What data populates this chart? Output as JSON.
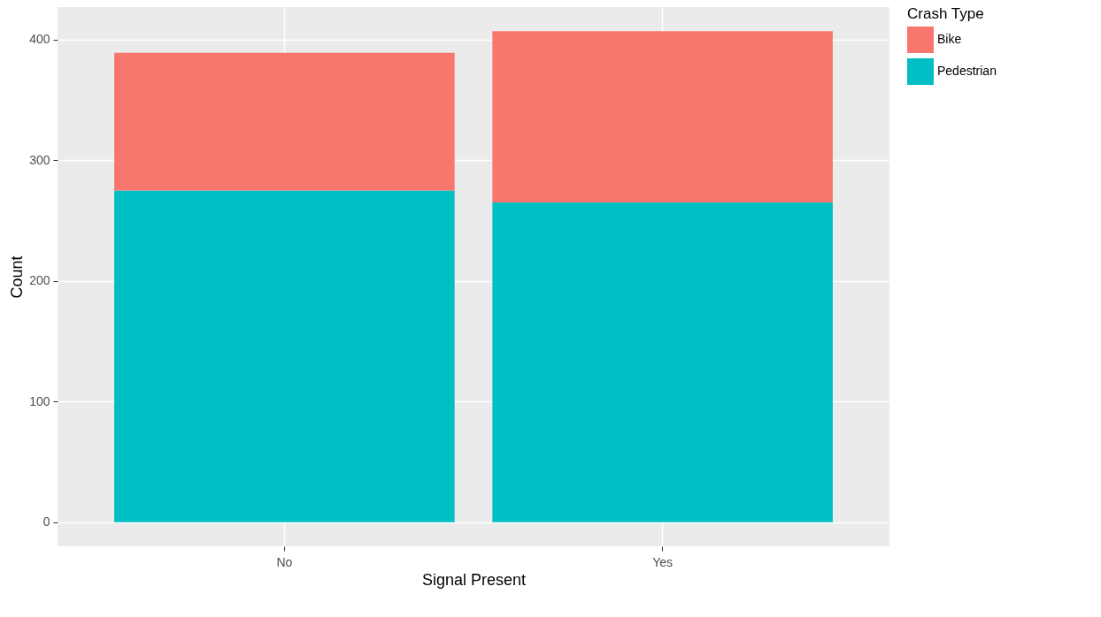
{
  "chart_data": {
    "type": "bar",
    "xlabel": "Signal Present",
    "ylabel": "Count",
    "legend_title": "Crash Type",
    "categories": [
      "No",
      "Yes"
    ],
    "stacked": true,
    "series": [
      {
        "name": "Pedestrian",
        "color": "#00bfc4",
        "values": [
          275,
          265
        ]
      },
      {
        "name": "Bike",
        "color": "#f8766d",
        "values": [
          114,
          142
        ]
      }
    ],
    "ylim": [
      -20,
      427
    ],
    "yticks": [
      0,
      100,
      200,
      300,
      400
    ],
    "grid": true,
    "legend": "right"
  }
}
